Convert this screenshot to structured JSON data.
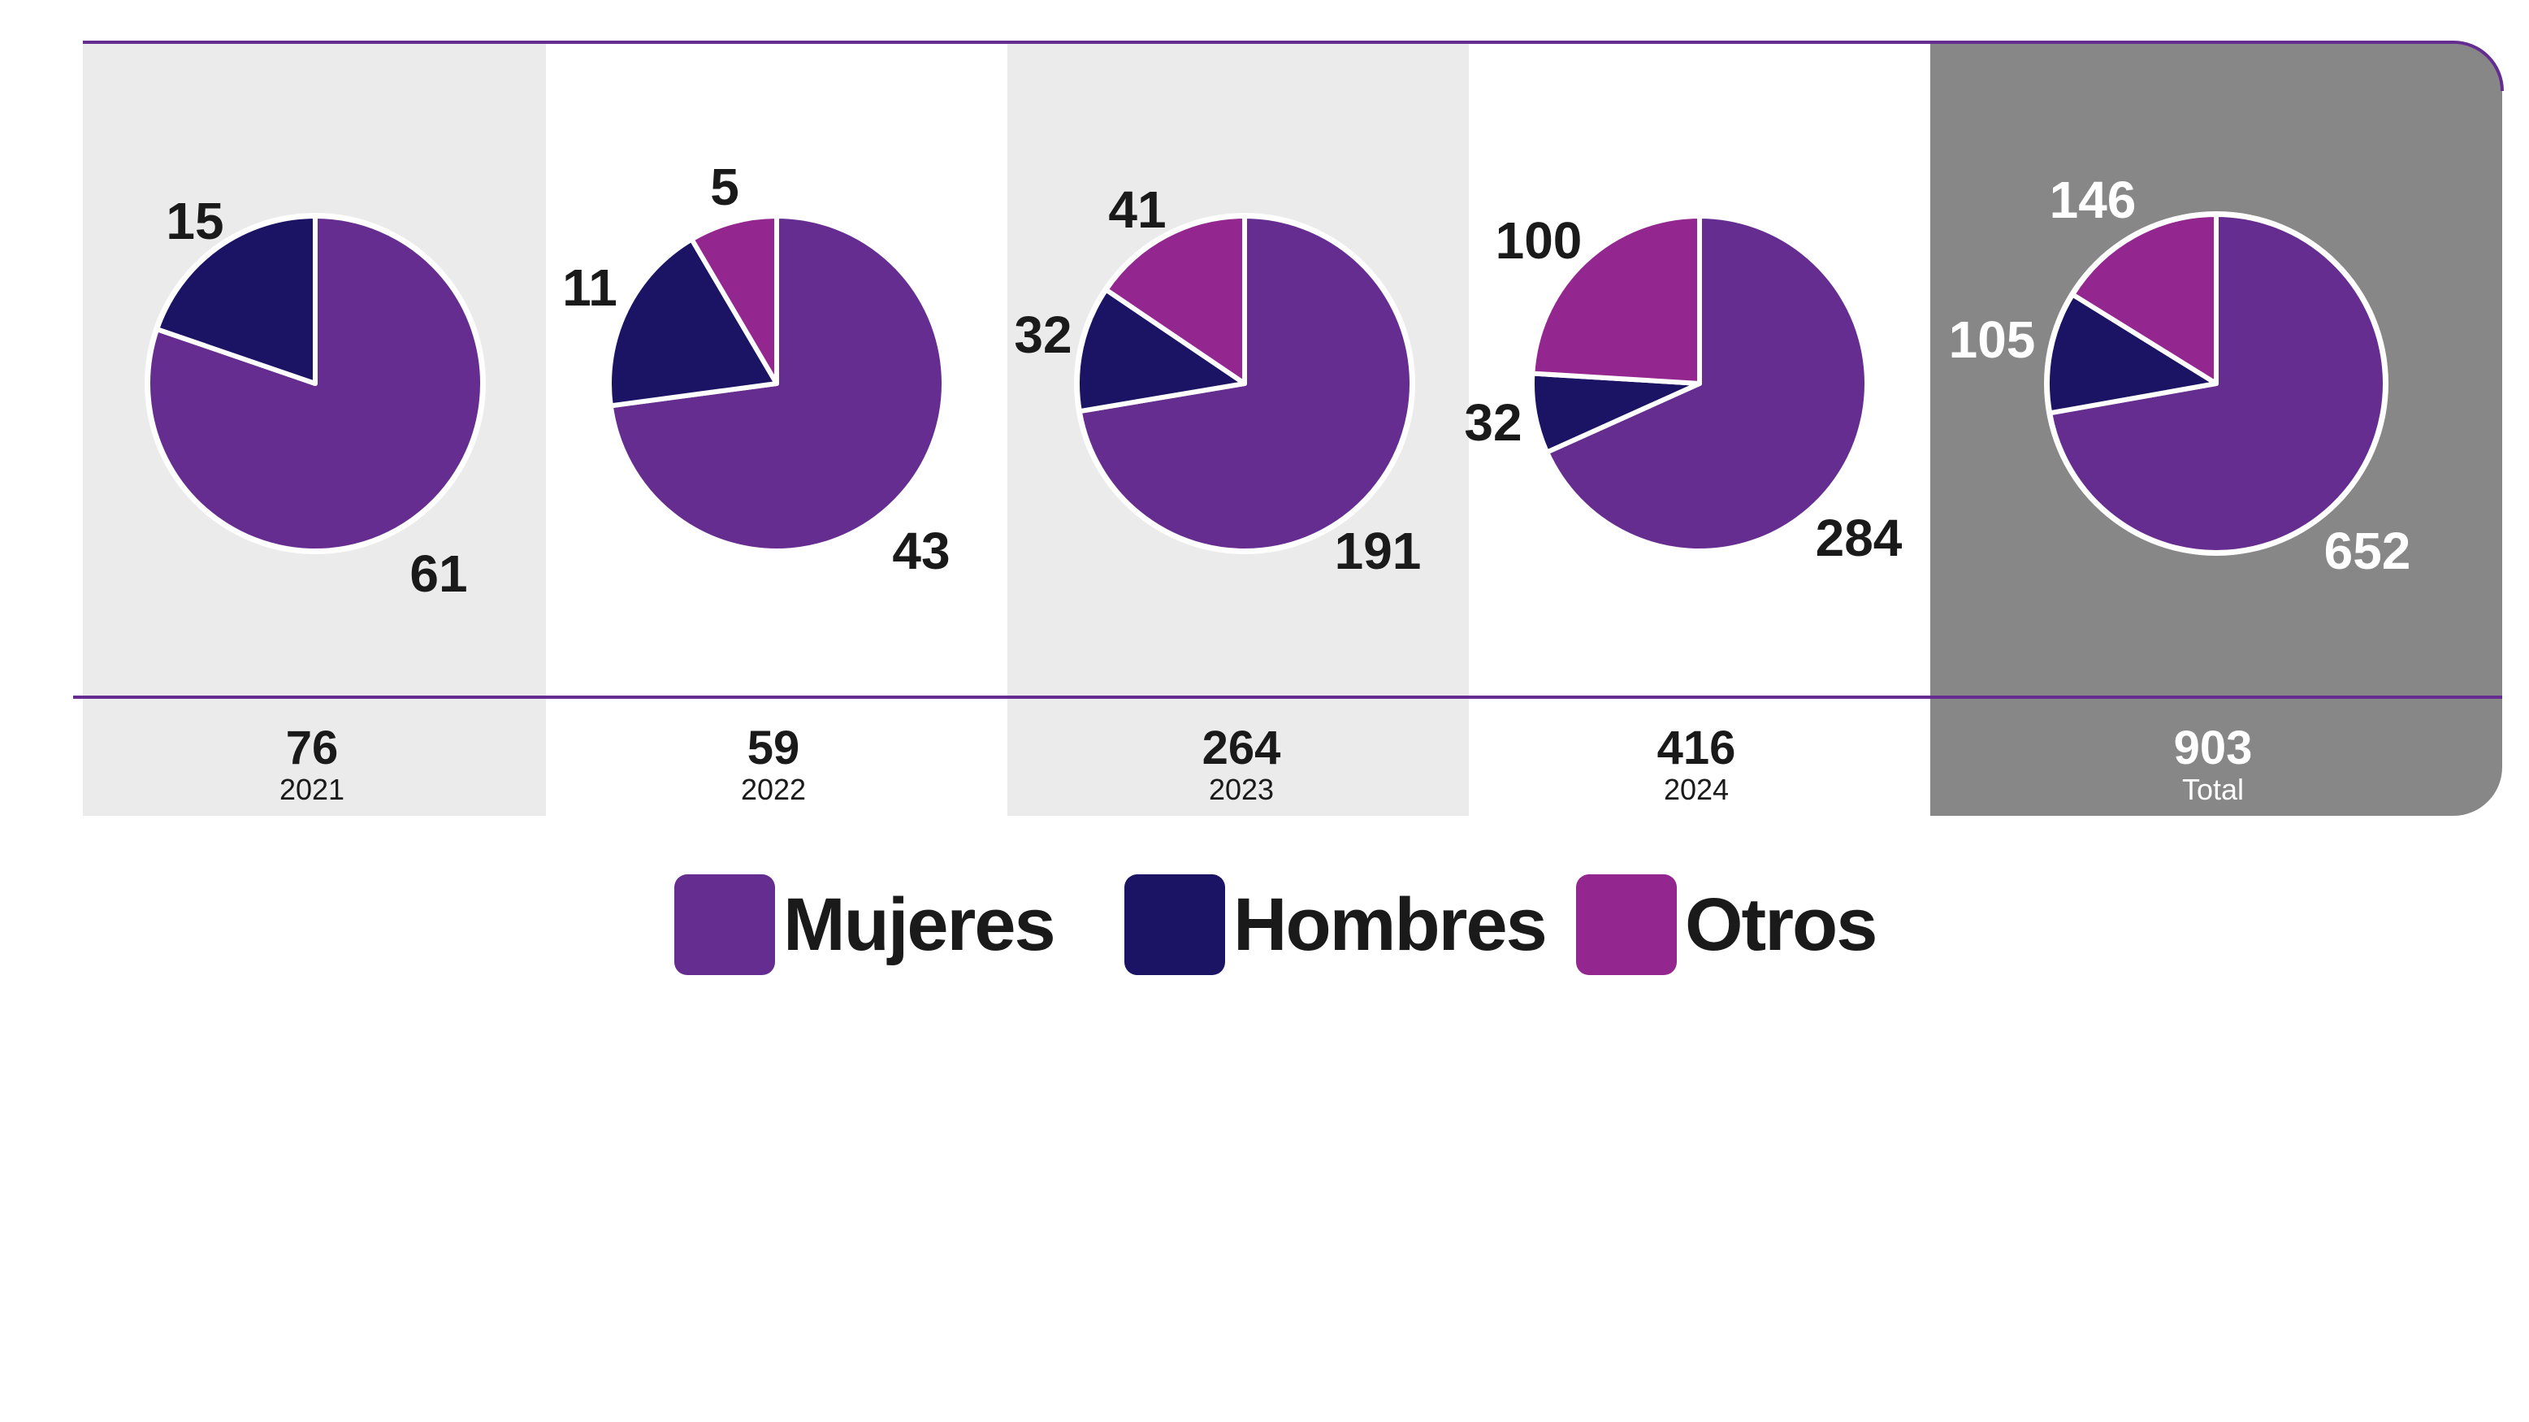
{
  "chart_data": {
    "type": "pie",
    "colors": {
      "Mujeres": "#662d91",
      "Hombres": "#1b1464",
      "Otros": "#93278f"
    },
    "panel_colors": {
      "light": "#ebebeb",
      "white": "#ffffff",
      "total": "#878787",
      "rule": "#662d91"
    },
    "legend": {
      "placement": "bottom",
      "entries": [
        "Mujeres",
        "Hombres",
        "Otros"
      ]
    },
    "pies": [
      {
        "label": "2021",
        "total": "76",
        "values": {
          "Mujeres": 61,
          "Hombres": 15,
          "Otros": 0
        },
        "labels": {
          "Mujeres": "61",
          "Hombres": "15"
        }
      },
      {
        "label": "2022",
        "total": "59",
        "values": {
          "Mujeres": 43,
          "Hombres": 11,
          "Otros": 5
        },
        "labels": {
          "Mujeres": "43",
          "Hombres": "11",
          "Otros": "5"
        }
      },
      {
        "label": "2023",
        "total": "264",
        "values": {
          "Mujeres": 191,
          "Hombres": 32,
          "Otros": 41
        },
        "labels": {
          "Mujeres": "191",
          "Hombres": "32",
          "Otros": "41"
        }
      },
      {
        "label": "2024",
        "total": "416",
        "values": {
          "Mujeres": 284,
          "Hombres": 32,
          "Otros": 100
        },
        "labels": {
          "Mujeres": "284",
          "Hombres": "32",
          "Otros": "100"
        }
      },
      {
        "label": "Total",
        "total": "903",
        "values": {
          "Mujeres": 652,
          "Hombres": 105,
          "Otros": 146
        },
        "labels": {
          "Mujeres": "652",
          "Hombres": "105",
          "Otros": "146"
        }
      }
    ]
  }
}
